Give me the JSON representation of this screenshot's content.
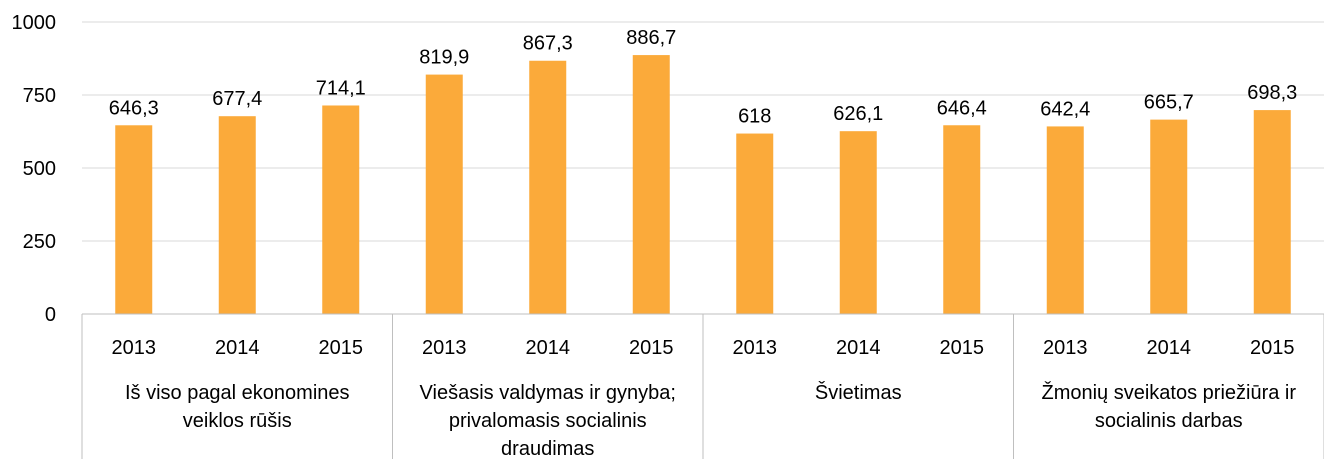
{
  "chart_data": {
    "type": "bar",
    "title": "",
    "xlabel": "",
    "ylabel": "",
    "ylim": [
      0,
      1000
    ],
    "yticks": [
      0,
      250,
      500,
      750,
      1000
    ],
    "grid": true,
    "bar_color": "#FBAA3A",
    "groups": [
      {
        "label_lines": [
          "Iš viso pagal ekonomines",
          "veiklos rūšis"
        ],
        "years": [
          "2013",
          "2014",
          "2015"
        ],
        "values": [
          646.3,
          677.4,
          714.1
        ],
        "value_labels": [
          "646,3",
          "677,4",
          "714,1"
        ]
      },
      {
        "label_lines": [
          "Viešasis valdymas ir gynyba;",
          "privalomasis socialinis",
          "draudimas"
        ],
        "years": [
          "2013",
          "2014",
          "2015"
        ],
        "values": [
          819.9,
          867.3,
          886.7
        ],
        "value_labels": [
          "819,9",
          "867,3",
          "886,7"
        ]
      },
      {
        "label_lines": [
          "Švietimas"
        ],
        "years": [
          "2013",
          "2014",
          "2015"
        ],
        "values": [
          618,
          626.1,
          646.4
        ],
        "value_labels": [
          "618",
          "626,1",
          "646,4"
        ]
      },
      {
        "label_lines": [
          "Žmonių sveikatos priežiūra ir",
          "socialinis darbas"
        ],
        "years": [
          "2013",
          "2014",
          "2015"
        ],
        "values": [
          642.4,
          665.7,
          698.3
        ],
        "value_labels": [
          "642,4",
          "665,7",
          "698,3"
        ]
      }
    ]
  }
}
